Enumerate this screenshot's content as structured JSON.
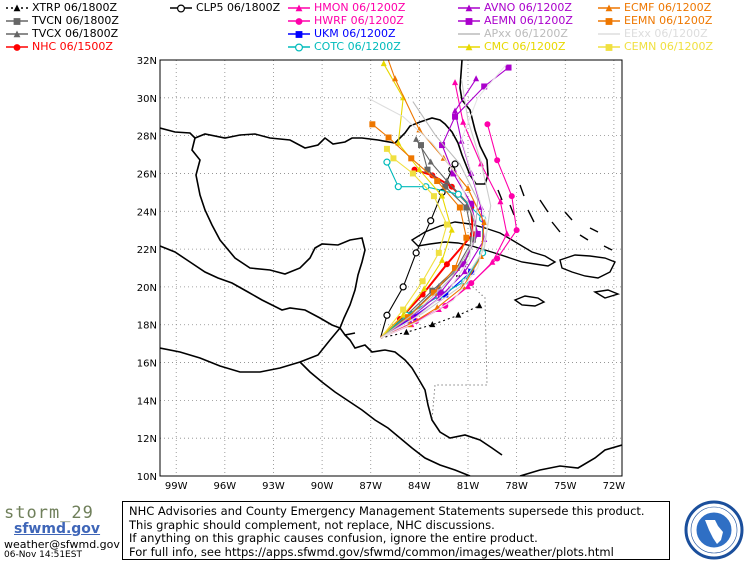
{
  "legend": [
    {
      "label": "XTRP  06/1800Z",
      "color": "#000000",
      "marker": "tri",
      "dash": "2,3"
    },
    {
      "label": "TVCN  06/1800Z",
      "color": "#666666",
      "marker": "square",
      "dash": ""
    },
    {
      "label": "TVCX  06/1800Z",
      "color": "#666666",
      "marker": "tri",
      "dash": ""
    },
    {
      "label": "NHC  06/1500Z",
      "color": "#ff0000",
      "marker": "circle",
      "dash": ""
    },
    {
      "label": "CLP5  06/1800Z",
      "color": "#000000",
      "marker": "ocircle",
      "dash": ""
    },
    {
      "label": "HMON  06/1200Z",
      "color": "#ff00aa",
      "marker": "tri",
      "dash": ""
    },
    {
      "label": "HWRF  06/1200Z",
      "color": "#ff00aa",
      "marker": "circle",
      "dash": ""
    },
    {
      "label": "UKM   06/1200Z",
      "color": "#0000ff",
      "marker": "square",
      "dash": ""
    },
    {
      "label": "COTC  06/1200Z",
      "color": "#00bbbb",
      "marker": "ocircle",
      "dash": ""
    },
    {
      "label": "AVNO  06/1200Z",
      "color": "#aa00cc",
      "marker": "tri",
      "dash": ""
    },
    {
      "label": "AEMN  06/1200Z",
      "color": "#aa00cc",
      "marker": "square",
      "dash": ""
    },
    {
      "label": "APxx   06/1200Z",
      "color": "#bbbbbb",
      "marker": "none",
      "dash": ""
    },
    {
      "label": "CMC   06/1200Z",
      "color": "#e8d800",
      "marker": "tri",
      "dash": ""
    },
    {
      "label": "ECMF  06/1200Z",
      "color": "#ee7700",
      "marker": "tri",
      "dash": ""
    },
    {
      "label": "EEMN  06/1200Z",
      "color": "#ee7700",
      "marker": "square",
      "dash": ""
    },
    {
      "label": "EExx   06/1200Z",
      "color": "#dddddd",
      "marker": "none",
      "dash": ""
    },
    {
      "label": "CEMN  06/1200Z",
      "color": "#f0e040",
      "marker": "square",
      "dash": ""
    }
  ],
  "axes": {
    "lat_labels": [
      "32N",
      "30N",
      "28N",
      "26N",
      "24N",
      "22N",
      "20N",
      "18N",
      "16N",
      "14N",
      "12N",
      "10N"
    ],
    "lon_labels": [
      "99W",
      "96W",
      "93W",
      "90W",
      "87W",
      "84W",
      "81W",
      "78W",
      "75W",
      "72W"
    ]
  },
  "footer": {
    "lines": [
      "NHC Advisories and County Emergency Management Statements supersede this product.",
      "This graphic should complement, not replace, NHC discussions.",
      "If anything on this graphic causes confusion, ignore the entire product.",
      "For full info, see   https://apps.sfwmd.gov/sfwmd/common/images/weather/plots.html"
    ]
  },
  "branding": {
    "storm": "storm_29",
    "logo": "sfwmd.gov",
    "email": "weather@sfwmd.gov",
    "timestamp": "06-Nov 14:51EST",
    "seal_text": "SOUTH FLORIDA WATER MANAGEMENT DISTRICT"
  },
  "tracks": [
    {
      "name": "XTRP",
      "color": "#000000",
      "dash": "2,3",
      "marker": "tri",
      "points": [
        [
          -86.4,
          17.3
        ],
        [
          -84.8,
          17.6
        ],
        [
          -83.2,
          18.0
        ],
        [
          -81.6,
          18.5
        ],
        [
          -80.3,
          19.0
        ]
      ]
    },
    {
      "name": "CLP5",
      "color": "#000000",
      "dash": "",
      "marker": "ocircle",
      "points": [
        [
          -86.4,
          17.3
        ],
        [
          -86.0,
          18.5
        ],
        [
          -85.0,
          20.0
        ],
        [
          -84.2,
          21.8
        ],
        [
          -83.3,
          23.5
        ],
        [
          -82.6,
          25.0
        ],
        [
          -82.0,
          26.2
        ],
        [
          -81.8,
          26.5
        ]
      ]
    },
    {
      "name": "NHC",
      "color": "#ff0000",
      "dash": "",
      "marker": "circle",
      "points": [
        [
          -86.4,
          17.3
        ],
        [
          -85.2,
          18.3
        ],
        [
          -83.8,
          19.6
        ],
        [
          -82.3,
          21.2
        ],
        [
          -80.7,
          22.8
        ],
        [
          -80.8,
          24.2
        ],
        [
          -82.0,
          25.3
        ],
        [
          -83.2,
          25.9
        ],
        [
          -84.3,
          26.2
        ]
      ]
    },
    {
      "name": "TVCN",
      "color": "#666666",
      "dash": "",
      "marker": "square",
      "points": [
        [
          -86.4,
          17.3
        ],
        [
          -84.8,
          18.5
        ],
        [
          -83.2,
          19.8
        ],
        [
          -81.7,
          21.0
        ],
        [
          -80.7,
          22.5
        ],
        [
          -81.1,
          24.2
        ],
        [
          -82.4,
          25.3
        ],
        [
          -83.5,
          26.2
        ],
        [
          -83.9,
          27.5
        ]
      ]
    },
    {
      "name": "TVCX",
      "color": "#666666",
      "dash": "",
      "marker": "tri",
      "points": [
        [
          -86.4,
          17.3
        ],
        [
          -84.5,
          18.6
        ],
        [
          -82.8,
          20.0
        ],
        [
          -81.2,
          21.3
        ],
        [
          -80.4,
          22.8
        ],
        [
          -81.0,
          24.4
        ],
        [
          -82.3,
          25.6
        ],
        [
          -83.3,
          26.6
        ],
        [
          -84.2,
          27.8
        ]
      ]
    },
    {
      "name": "HMON",
      "color": "#ff00aa",
      "dash": "",
      "marker": "tri",
      "points": [
        [
          -86.4,
          17.3
        ],
        [
          -84.5,
          18.0
        ],
        [
          -82.8,
          18.8
        ],
        [
          -81.0,
          20.0
        ],
        [
          -79.5,
          21.3
        ],
        [
          -78.6,
          22.8
        ],
        [
          -79.0,
          24.5
        ],
        [
          -80.2,
          26.5
        ],
        [
          -81.3,
          28.7
        ],
        [
          -81.8,
          30.8
        ]
      ]
    },
    {
      "name": "HWRF",
      "color": "#ff00aa",
      "dash": "",
      "marker": "circle",
      "points": [
        [
          -86.4,
          17.3
        ],
        [
          -84.2,
          18.2
        ],
        [
          -82.4,
          19.0
        ],
        [
          -80.8,
          20.2
        ],
        [
          -79.2,
          21.5
        ],
        [
          -78.0,
          23.0
        ],
        [
          -78.3,
          24.8
        ],
        [
          -79.2,
          26.7
        ],
        [
          -79.8,
          28.6
        ]
      ]
    },
    {
      "name": "UKM",
      "color": "#0000ff",
      "dash": "",
      "marker": "square",
      "points": [
        [
          -86.4,
          17.3
        ],
        [
          -84.4,
          18.4
        ],
        [
          -82.4,
          19.6
        ],
        [
          -80.8,
          20.8
        ]
      ]
    },
    {
      "name": "COTC",
      "color": "#00bbbb",
      "dash": "",
      "marker": "ocircle",
      "points": [
        [
          -86.4,
          17.3
        ],
        [
          -84.8,
          18.5
        ],
        [
          -82.8,
          19.5
        ],
        [
          -81.2,
          20.3
        ],
        [
          -80.1,
          21.8
        ],
        [
          -80.1,
          23.6
        ],
        [
          -81.6,
          24.9
        ],
        [
          -83.6,
          25.3
        ],
        [
          -85.3,
          25.3
        ],
        [
          -86.0,
          26.6
        ]
      ]
    },
    {
      "name": "AVNO",
      "color": "#aa00cc",
      "dash": "",
      "marker": "tri",
      "points": [
        [
          -86.4,
          17.3
        ],
        [
          -84.6,
          18.2
        ],
        [
          -82.8,
          19.4
        ],
        [
          -81.2,
          20.8
        ],
        [
          -80.0,
          22.5
        ],
        [
          -80.2,
          24.2
        ],
        [
          -80.8,
          26.0
        ],
        [
          -81.4,
          27.7
        ],
        [
          -81.8,
          29.3
        ],
        [
          -80.5,
          31.0
        ]
      ]
    },
    {
      "name": "AEMN",
      "color": "#aa00cc",
      "dash": "",
      "marker": "square",
      "points": [
        [
          -86.4,
          17.3
        ],
        [
          -84.5,
          18.4
        ],
        [
          -82.7,
          19.7
        ],
        [
          -81.3,
          21.2
        ],
        [
          -80.4,
          22.8
        ],
        [
          -80.8,
          24.4
        ],
        [
          -81.9,
          26.0
        ],
        [
          -82.6,
          27.5
        ],
        [
          -81.8,
          29.0
        ],
        [
          -80.0,
          30.6
        ],
        [
          -78.5,
          31.6
        ]
      ]
    },
    {
      "name": "CMC",
      "color": "#e8d800",
      "dash": "",
      "marker": "tri",
      "points": [
        [
          -86.4,
          17.3
        ],
        [
          -85.0,
          18.5
        ],
        [
          -83.7,
          19.9
        ],
        [
          -82.6,
          21.4
        ],
        [
          -82.0,
          23.0
        ],
        [
          -82.6,
          24.8
        ],
        [
          -84.0,
          26.2
        ],
        [
          -85.3,
          27.6
        ],
        [
          -85.0,
          30.0
        ],
        [
          -86.2,
          31.8
        ]
      ]
    },
    {
      "name": "CEMN",
      "color": "#f0e040",
      "dash": "",
      "marker": "square",
      "points": [
        [
          -86.4,
          17.3
        ],
        [
          -85.0,
          18.8
        ],
        [
          -83.8,
          20.3
        ],
        [
          -82.8,
          21.8
        ],
        [
          -82.3,
          23.3
        ],
        [
          -83.1,
          24.8
        ],
        [
          -84.4,
          26.0
        ],
        [
          -85.6,
          26.8
        ],
        [
          -86.0,
          27.3
        ]
      ]
    },
    {
      "name": "ECMF",
      "color": "#ee7700",
      "dash": "",
      "marker": "tri",
      "points": [
        [
          -86.4,
          17.3
        ],
        [
          -84.6,
          18.0
        ],
        [
          -82.9,
          18.9
        ],
        [
          -81.3,
          20.0
        ],
        [
          -80.2,
          21.6
        ],
        [
          -80.0,
          23.4
        ],
        [
          -81.0,
          25.2
        ],
        [
          -82.5,
          26.8
        ],
        [
          -84.0,
          28.3
        ],
        [
          -85.5,
          31.0
        ],
        [
          -86.0,
          32.2
        ]
      ]
    },
    {
      "name": "EEMN",
      "color": "#ee7700",
      "dash": "",
      "marker": "square",
      "points": [
        [
          -86.4,
          17.3
        ],
        [
          -84.7,
          18.4
        ],
        [
          -83.1,
          19.7
        ],
        [
          -81.8,
          21.0
        ],
        [
          -81.1,
          22.6
        ],
        [
          -81.5,
          24.2
        ],
        [
          -82.9,
          25.6
        ],
        [
          -84.5,
          26.8
        ],
        [
          -85.9,
          27.9
        ],
        [
          -86.9,
          28.6
        ]
      ]
    },
    {
      "name": "APxx-1",
      "color": "#bbbbbb",
      "dash": "",
      "marker": "none",
      "points": [
        [
          -86.4,
          17.3
        ],
        [
          -84.0,
          18.8
        ],
        [
          -82.0,
          20.5
        ],
        [
          -80.6,
          22.4
        ],
        [
          -80.4,
          24.6
        ],
        [
          -81.5,
          26.5
        ],
        [
          -83.0,
          28.0
        ],
        [
          -84.4,
          29.8
        ]
      ]
    },
    {
      "name": "APxx-2",
      "color": "#cccccc",
      "dash": "",
      "marker": "none",
      "points": [
        [
          -86.4,
          17.3
        ],
        [
          -83.8,
          18.6
        ],
        [
          -81.5,
          20.0
        ],
        [
          -80.0,
          22.0
        ],
        [
          -79.6,
          24.3
        ],
        [
          -80.2,
          26.6
        ],
        [
          -81.0,
          28.8
        ],
        [
          -81.4,
          31.0
        ]
      ]
    },
    {
      "name": "EExx-1",
      "color": "#dddddd",
      "dash": "",
      "marker": "none",
      "points": [
        [
          -86.4,
          17.3
        ],
        [
          -84.2,
          18.4
        ],
        [
          -82.2,
          19.8
        ],
        [
          -80.9,
          21.5
        ],
        [
          -80.6,
          23.6
        ],
        [
          -81.6,
          25.8
        ],
        [
          -83.2,
          27.6
        ],
        [
          -85.0,
          29.0
        ],
        [
          -87.2,
          30.0
        ]
      ]
    },
    {
      "name": "EExx-2",
      "color": "#e6e6e6",
      "dash": "",
      "marker": "none",
      "points": [
        [
          -86.4,
          17.3
        ],
        [
          -84.0,
          18.2
        ],
        [
          -81.9,
          19.3
        ],
        [
          -80.4,
          21.0
        ],
        [
          -79.8,
          23.2
        ],
        [
          -80.6,
          25.5
        ],
        [
          -81.4,
          27.8
        ],
        [
          -80.4,
          30.0
        ],
        [
          -78.6,
          31.8
        ]
      ]
    }
  ]
}
